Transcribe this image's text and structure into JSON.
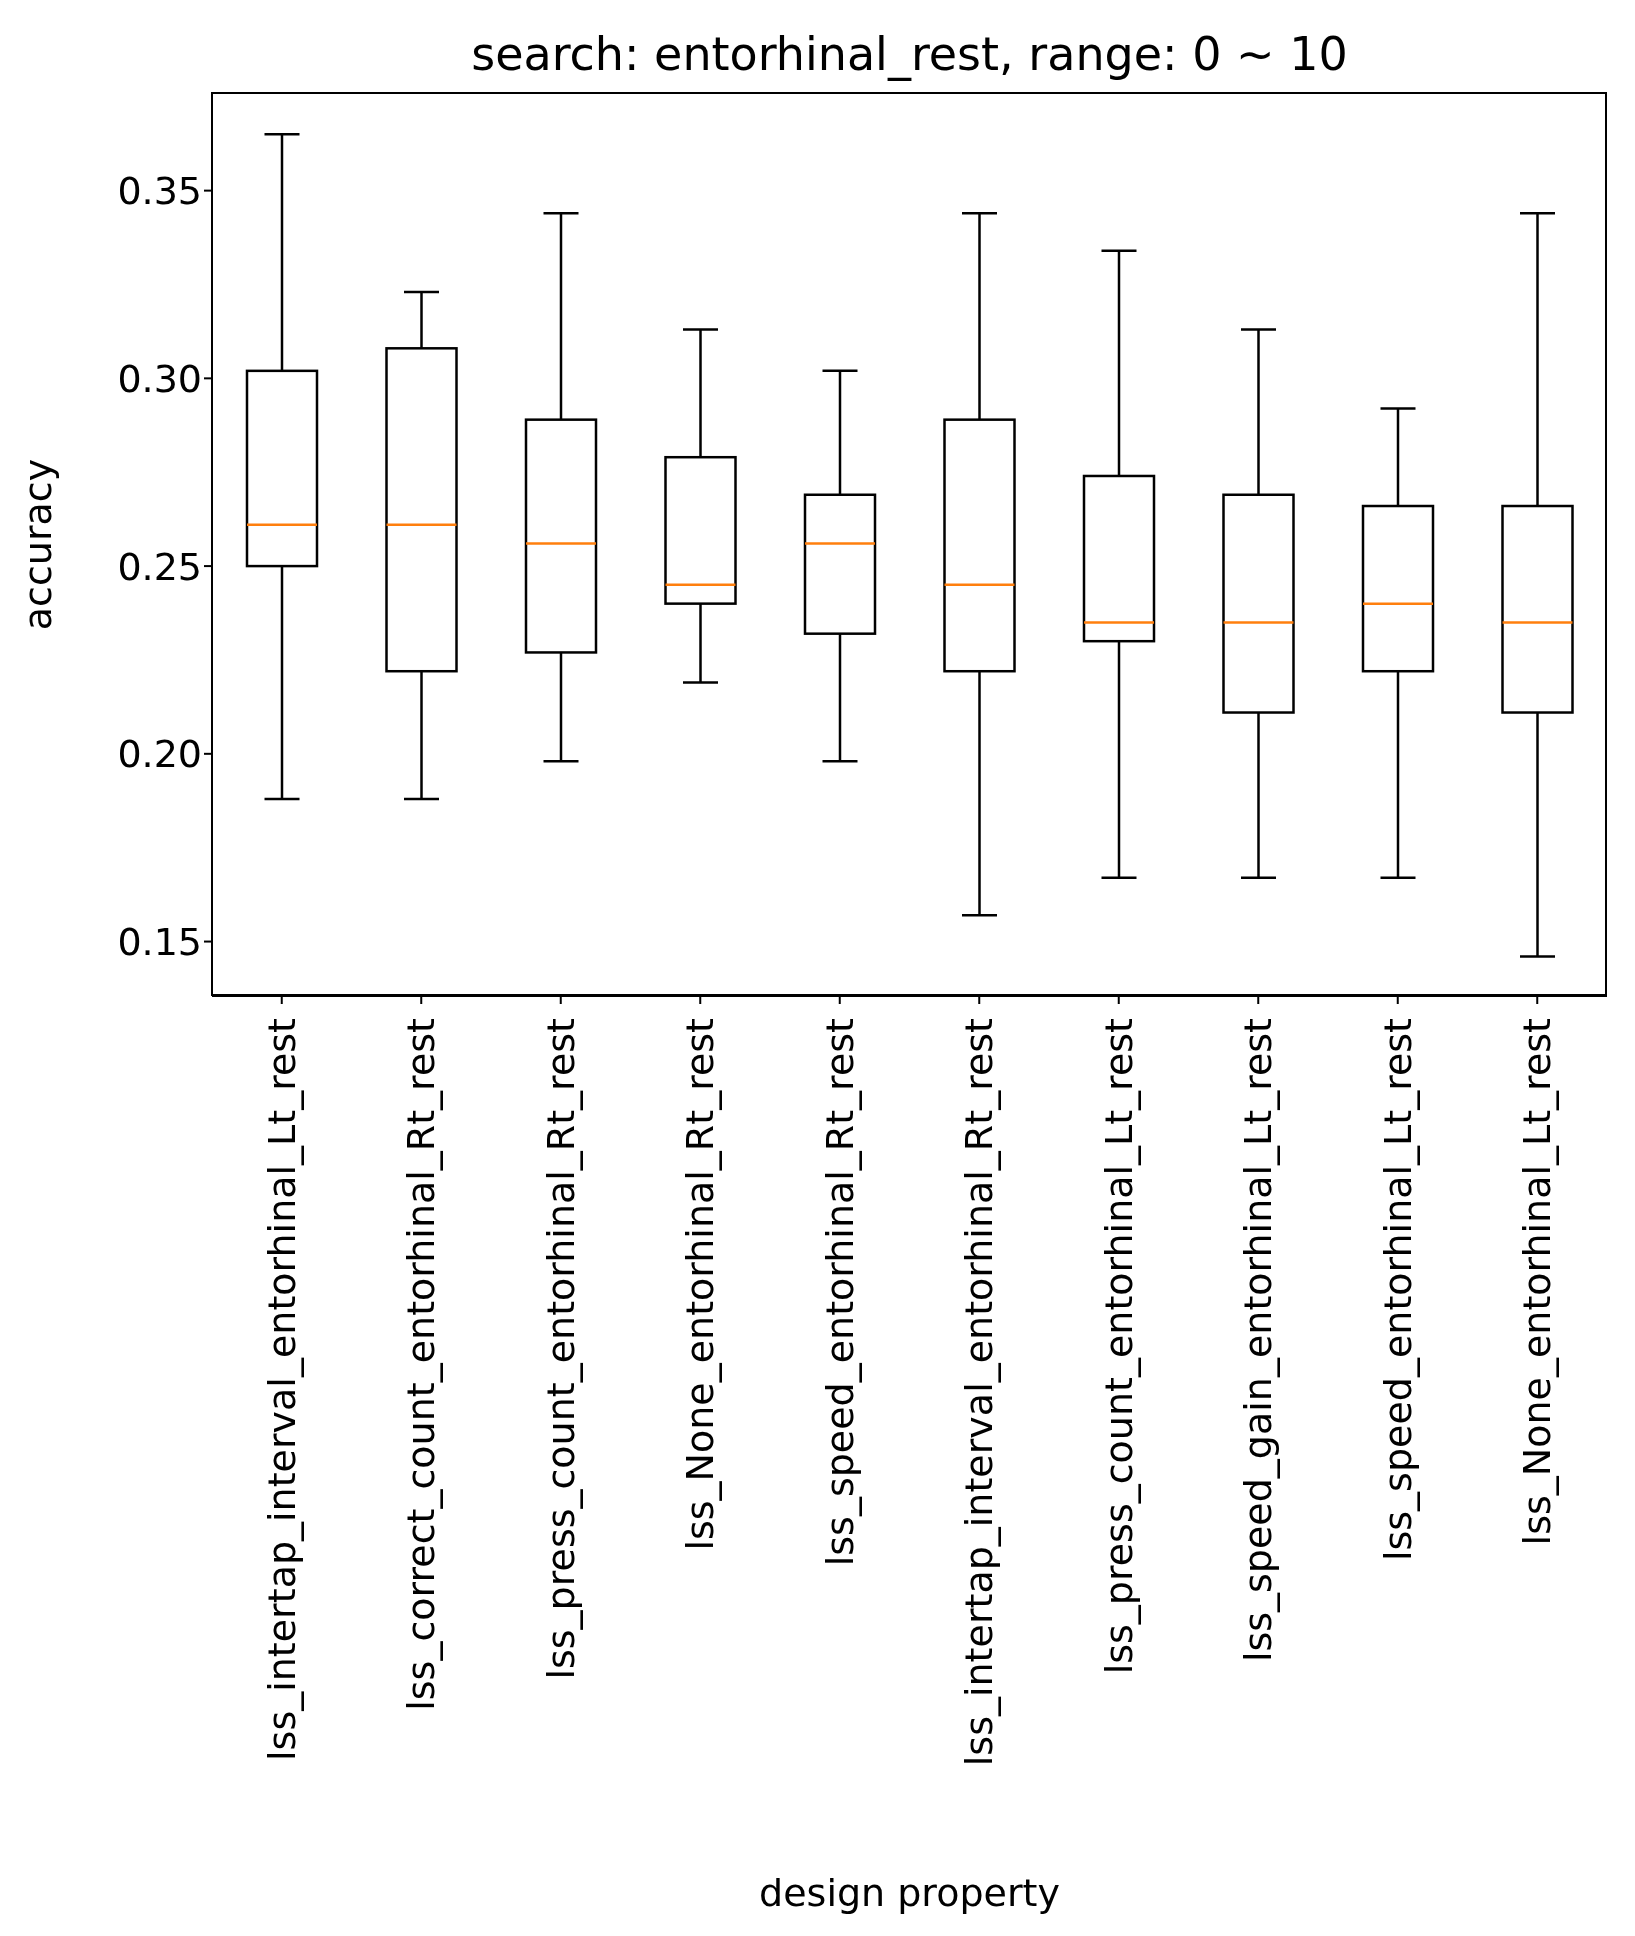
{
  "chart_data": {
    "type": "box",
    "title": "search: entorhinal_rest, range: 0 ~ 10",
    "xlabel": "design property",
    "ylabel": "accuracy",
    "categories": [
      "lss_intertap_interval_entorhinal_Lt_rest",
      "lss_correct_count_entorhinal_Rt_rest",
      "lss_press_count_entorhinal_Rt_rest",
      "lss_None_entorhinal_Rt_rest",
      "lss_speed_entorhinal_Rt_rest",
      "lss_intertap_interval_entorhinal_Rt_rest",
      "lss_press_count_entorhinal_Lt_rest",
      "lss_speed_gain_entorhinal_Lt_rest",
      "lss_speed_entorhinal_Lt_rest",
      "lss_None_entorhinal_Lt_rest"
    ],
    "ylim": [
      0.1355,
      0.376
    ],
    "yticks": [
      {
        "value": 0.15,
        "label": "0.15"
      },
      {
        "value": 0.2,
        "label": "0.20"
      },
      {
        "value": 0.25,
        "label": "0.25"
      },
      {
        "value": 0.3,
        "label": "0.30"
      },
      {
        "value": 0.35,
        "label": "0.35"
      }
    ],
    "color": "#000000",
    "boxes": [
      {
        "low": 0.188,
        "q1": 0.25,
        "median": 0.261,
        "q3": 0.302,
        "high": 0.365
      },
      {
        "low": 0.188,
        "q1": 0.222,
        "median": 0.261,
        "q3": 0.308,
        "high": 0.323
      },
      {
        "low": 0.198,
        "q1": 0.227,
        "median": 0.256,
        "q3": 0.289,
        "high": 0.344
      },
      {
        "low": 0.219,
        "q1": 0.24,
        "median": 0.245,
        "q3": 0.279,
        "high": 0.313
      },
      {
        "low": 0.198,
        "q1": 0.232,
        "median": 0.256,
        "q3": 0.269,
        "high": 0.302
      },
      {
        "low": 0.157,
        "q1": 0.222,
        "median": 0.245,
        "q3": 0.289,
        "high": 0.344
      },
      {
        "low": 0.167,
        "q1": 0.23,
        "median": 0.235,
        "q3": 0.274,
        "high": 0.334
      },
      {
        "low": 0.167,
        "q1": 0.211,
        "median": 0.235,
        "q3": 0.269,
        "high": 0.313
      },
      {
        "low": 0.167,
        "q1": 0.222,
        "median": 0.24,
        "q3": 0.266,
        "high": 0.292
      },
      {
        "low": 0.146,
        "q1": 0.211,
        "median": 0.235,
        "q3": 0.266,
        "high": 0.344
      }
    ]
  }
}
